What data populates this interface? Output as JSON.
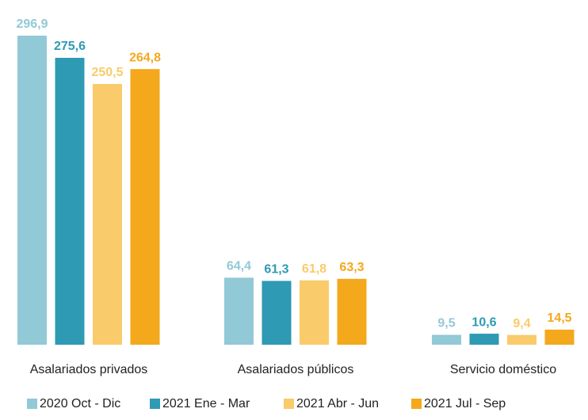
{
  "chart_data": {
    "type": "bar",
    "categories": [
      "Asalariados privados",
      "Asalariados públicos",
      "Servicio doméstico"
    ],
    "series": [
      {
        "name": "2020 Oct - Dic",
        "color": "#92c9d6",
        "values": [
          296.9,
          64.4,
          9.5
        ],
        "value_labels": [
          "296,9",
          "64,4",
          "9,5"
        ]
      },
      {
        "name": "2021 Ene - Mar",
        "color": "#2e9ab4",
        "values": [
          275.6,
          61.3,
          10.6
        ],
        "value_labels": [
          "275,6",
          "61,3",
          "10,6"
        ]
      },
      {
        "name": "2021 Abr - Jun",
        "color": "#facb6a",
        "values": [
          250.5,
          61.8,
          9.4
        ],
        "value_labels": [
          "250,5",
          "61,8",
          "9,4"
        ]
      },
      {
        "name": "2021 Jul - Sep",
        "color": "#f4a81c",
        "values": [
          264.8,
          63.3,
          14.5
        ],
        "value_labels": [
          "264,8",
          "63,3",
          "14,5"
        ]
      }
    ],
    "legend": "bottom"
  }
}
